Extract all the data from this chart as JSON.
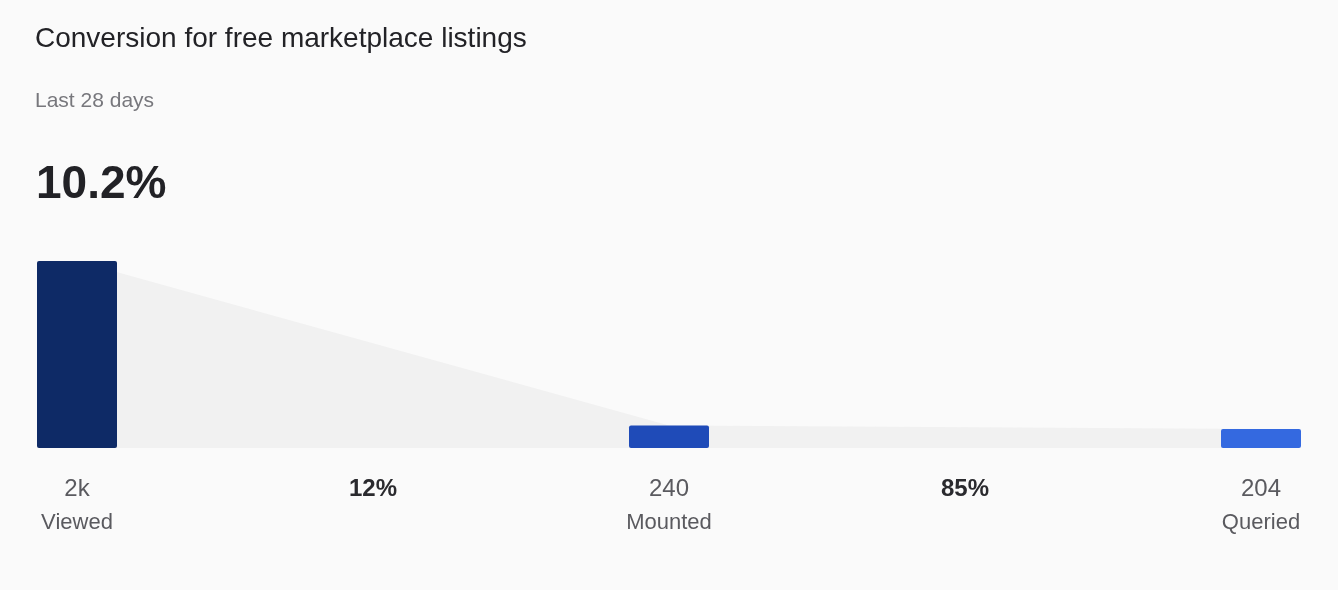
{
  "chart_data": {
    "type": "bar",
    "title": "Conversion for free marketplace listings",
    "subtitle": "Last 28 days",
    "categories": [
      "Viewed",
      "Mounted",
      "Queried"
    ],
    "series": [
      {
        "type": "area",
        "color": "#f1f1f1",
        "values": [
          2000,
          240,
          204
        ]
      },
      {
        "type": "bar",
        "colors": [
          "#0e2a66",
          "#1f4bb8",
          "#3469e0"
        ],
        "values": [
          2000,
          240,
          204
        ],
        "value_labels": [
          "2k",
          "240",
          "204"
        ]
      }
    ],
    "annotations": [
      "10.2%",
      "12%",
      "85%"
    ]
  }
}
